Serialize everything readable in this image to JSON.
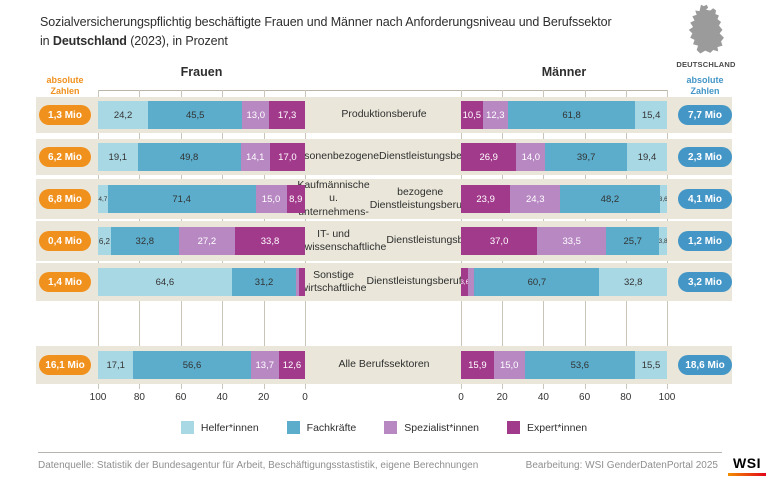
{
  "title": {
    "line1": "Sozialversicherungspflichtig beschäftigte Frauen und Männer nach Anforderungsniveau und Berufssektor",
    "line2_pre": "in ",
    "line2_bold": "Deutschland",
    "line2_post": " (2023), in Prozent"
  },
  "map_caption": "DEUTSCHLAND",
  "headers": {
    "frauen": "Frauen",
    "maenner": "Männer",
    "absolute_left": "absolute Zahlen",
    "absolute_right": "absolute Zahlen"
  },
  "colors": {
    "helfer": "#a9d8e5",
    "fachkraefte": "#5badcb",
    "spezialist": "#b888c3",
    "expert": "#a23a8c",
    "band": "#eae7da",
    "pill_left": "#f0911e",
    "pill_right": "#4496c7",
    "grid": "#c9c6b9",
    "label_dark": "#333333",
    "label_light": "#ffffff",
    "map_gray": "#9b9b9b"
  },
  "legend": [
    {
      "label": "Helfer*innen",
      "color_key": "helfer"
    },
    {
      "label": "Fachkräfte",
      "color_key": "fachkraefte"
    },
    {
      "label": "Spezialist*innen",
      "color_key": "spezialist"
    },
    {
      "label": "Expert*innen",
      "color_key": "expert"
    }
  ],
  "footer": {
    "source": "Datenquelle: Statistik der Bundesagentur für Arbeit, Beschäftigungsstastistik, eigene Berechnungen",
    "editing": "Bearbeitung: WSI GenderDatenPortal 2025",
    "logo": "WSI"
  },
  "chart_data": {
    "type": "bar",
    "variant": "butterfly-stacked-horizontal",
    "title": "Sozialversicherungspflichtig beschäftigte Frauen und Männer nach Anforderungsniveau und Berufssektor in Deutschland (2023), in Prozent",
    "xlim": [
      0,
      100
    ],
    "axis_ticks": [
      0,
      20,
      40,
      60,
      80,
      100
    ],
    "axis_ticks_frauen_display": [
      "100",
      "80",
      "60",
      "40",
      "20",
      "0"
    ],
    "axis_ticks_maenner_display": [
      "0",
      "20",
      "40",
      "60",
      "80",
      "100"
    ],
    "series_order": [
      "Helfer*innen",
      "Fachkräfte",
      "Spezialist*innen",
      "Expert*innen"
    ],
    "legend_position": "bottom",
    "grid": true,
    "rows": [
      {
        "category": [
          "Produktionsberufe"
        ],
        "frauen": {
          "absolute": "1,3 Mio",
          "segments": [
            {
              "k": "helfer",
              "v": 24.2,
              "label": "24,2"
            },
            {
              "k": "fachkraefte",
              "v": 45.5,
              "label": "45,5"
            },
            {
              "k": "spezialist",
              "v": 13.0,
              "label": "13,0"
            },
            {
              "k": "expert",
              "v": 17.3,
              "label": "17,3"
            }
          ]
        },
        "maenner": {
          "absolute": "7,7 Mio",
          "segments": [
            {
              "k": "helfer",
              "v": 15.4,
              "label": "15,4"
            },
            {
              "k": "fachkraefte",
              "v": 61.8,
              "label": "61,8"
            },
            {
              "k": "spezialist",
              "v": 12.3,
              "label": "12,3"
            },
            {
              "k": "expert",
              "v": 10.5,
              "label": "10,5"
            }
          ]
        }
      },
      {
        "category": [
          "Personenbezogene",
          "Dienstleistungsberufe"
        ],
        "frauen": {
          "absolute": "6,2 Mio",
          "segments": [
            {
              "k": "helfer",
              "v": 19.1,
              "label": "19,1"
            },
            {
              "k": "fachkraefte",
              "v": 49.8,
              "label": "49,8"
            },
            {
              "k": "spezialist",
              "v": 14.1,
              "label": "14,1"
            },
            {
              "k": "expert",
              "v": 17.0,
              "label": "17,0"
            }
          ]
        },
        "maenner": {
          "absolute": "2,3 Mio",
          "segments": [
            {
              "k": "helfer",
              "v": 19.4,
              "label": "19,4"
            },
            {
              "k": "fachkraefte",
              "v": 39.7,
              "label": "39,7"
            },
            {
              "k": "spezialist",
              "v": 14.0,
              "label": "14,0"
            },
            {
              "k": "expert",
              "v": 26.9,
              "label": "26,9"
            }
          ]
        }
      },
      {
        "category": [
          "Kaufmännische u. unternehmens-",
          "bezogene Dienstleistungsberufe"
        ],
        "frauen": {
          "absolute": "6,8 Mio",
          "segments": [
            {
              "k": "helfer",
              "v": 4.7,
              "label": "4,7"
            },
            {
              "k": "fachkraefte",
              "v": 71.4,
              "label": "71,4"
            },
            {
              "k": "spezialist",
              "v": 15.0,
              "label": "15,0"
            },
            {
              "k": "expert",
              "v": 8.9,
              "label": "8,9"
            }
          ]
        },
        "maenner": {
          "absolute": "4,1 Mio",
          "segments": [
            {
              "k": "helfer",
              "v": 3.6,
              "label": "3,6"
            },
            {
              "k": "fachkraefte",
              "v": 48.2,
              "label": "48,2"
            },
            {
              "k": "spezialist",
              "v": 24.3,
              "label": "24,3"
            },
            {
              "k": "expert",
              "v": 23.9,
              "label": "23,9"
            }
          ]
        }
      },
      {
        "category": [
          "IT- und naturwissenschaftliche",
          "Dienstleistungsberufe"
        ],
        "frauen": {
          "absolute": "0,4 Mio",
          "segments": [
            {
              "k": "helfer",
              "v": 6.2,
              "label": "6,2"
            },
            {
              "k": "fachkraefte",
              "v": 32.8,
              "label": "32,8"
            },
            {
              "k": "spezialist",
              "v": 27.2,
              "label": "27,2"
            },
            {
              "k": "expert",
              "v": 33.8,
              "label": "33,8"
            }
          ]
        },
        "maenner": {
          "absolute": "1,2 Mio",
          "segments": [
            {
              "k": "helfer",
              "v": 3.8,
              "label": "3,8"
            },
            {
              "k": "fachkraefte",
              "v": 25.7,
              "label": "25,7"
            },
            {
              "k": "spezialist",
              "v": 33.5,
              "label": "33,5"
            },
            {
              "k": "expert",
              "v": 37.0,
              "label": "37,0"
            }
          ]
        }
      },
      {
        "category": [
          "Sonstige wirtschaftliche",
          "Dienstleistungsberufe"
        ],
        "frauen": {
          "absolute": "1,4 Mio",
          "segments": [
            {
              "k": "helfer",
              "v": 64.6,
              "label": "64,6"
            },
            {
              "k": "fachkraefte",
              "v": 31.2,
              "label": "31,2"
            },
            {
              "k": "spezialist",
              "v": 1.4,
              "label": ""
            },
            {
              "k": "expert",
              "v": 2.8,
              "label": ""
            }
          ]
        },
        "maenner": {
          "absolute": "3,2 Mio",
          "segments": [
            {
              "k": "helfer",
              "v": 32.8,
              "label": "32,8"
            },
            {
              "k": "fachkraefte",
              "v": 60.7,
              "label": "60,7"
            },
            {
              "k": "spezialist",
              "v": 2.9,
              "label": ""
            },
            {
              "k": "expert",
              "v": 3.6,
              "label": "3,6"
            }
          ]
        }
      },
      {
        "category": [
          "Alle Berufssektoren"
        ],
        "frauen": {
          "absolute": "16,1 Mio",
          "segments": [
            {
              "k": "helfer",
              "v": 17.1,
              "label": "17,1"
            },
            {
              "k": "fachkraefte",
              "v": 56.6,
              "label": "56,6"
            },
            {
              "k": "spezialist",
              "v": 13.7,
              "label": "13,7"
            },
            {
              "k": "expert",
              "v": 12.6,
              "label": "12,6"
            }
          ]
        },
        "maenner": {
          "absolute": "18,6 Mio",
          "segments": [
            {
              "k": "helfer",
              "v": 15.5,
              "label": "15,5"
            },
            {
              "k": "fachkraefte",
              "v": 53.6,
              "label": "53,6"
            },
            {
              "k": "spezialist",
              "v": 15.0,
              "label": "15,0"
            },
            {
              "k": "expert",
              "v": 15.9,
              "label": "15,9"
            }
          ]
        }
      }
    ]
  }
}
